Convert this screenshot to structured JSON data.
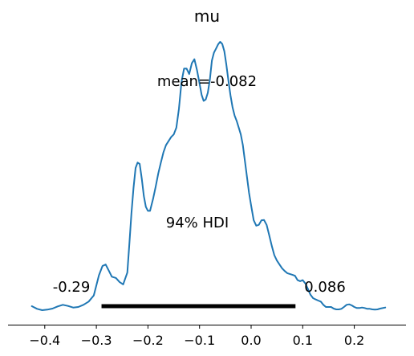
{
  "chart_data": {
    "type": "line",
    "title": "mu",
    "xlabel": "",
    "ylabel": "",
    "grid": false,
    "xlim": [
      -0.435,
      0.3
    ],
    "ylim": [
      0.0,
      1.0
    ],
    "x_ticks": [
      -0.4,
      -0.3,
      -0.2,
      -0.1,
      0.0,
      0.1,
      0.2
    ],
    "x_tick_labels": [
      "−0.4",
      "−0.3",
      "−0.2",
      "−0.1",
      "0.0",
      "0.1",
      "0.2"
    ],
    "series": [
      {
        "color": "#1f77b4",
        "x": [
          -0.425,
          -0.415,
          -0.405,
          -0.395,
          -0.385,
          -0.375,
          -0.365,
          -0.355,
          -0.345,
          -0.335,
          -0.325,
          -0.315,
          -0.305,
          -0.295,
          -0.288,
          -0.282,
          -0.276,
          -0.27,
          -0.262,
          -0.255,
          -0.248,
          -0.24,
          -0.236,
          -0.232,
          -0.228,
          -0.224,
          -0.22,
          -0.216,
          -0.212,
          -0.208,
          -0.204,
          -0.2,
          -0.196,
          -0.19,
          -0.185,
          -0.18,
          -0.175,
          -0.17,
          -0.165,
          -0.16,
          -0.155,
          -0.15,
          -0.145,
          -0.14,
          -0.135,
          -0.13,
          -0.125,
          -0.12,
          -0.115,
          -0.11,
          -0.105,
          -0.1,
          -0.096,
          -0.092,
          -0.088,
          -0.084,
          -0.08,
          -0.076,
          -0.072,
          -0.068,
          -0.064,
          -0.06,
          -0.056,
          -0.052,
          -0.048,
          -0.044,
          -0.04,
          -0.036,
          -0.032,
          -0.028,
          -0.024,
          -0.02,
          -0.016,
          -0.012,
          -0.008,
          -0.004,
          0.0,
          0.005,
          0.01,
          0.015,
          0.02,
          0.025,
          0.03,
          0.035,
          0.04,
          0.045,
          0.05,
          0.055,
          0.06,
          0.065,
          0.07,
          0.075,
          0.08,
          0.085,
          0.09,
          0.095,
          0.1,
          0.105,
          0.11,
          0.115,
          0.12,
          0.125,
          0.13,
          0.135,
          0.14,
          0.145,
          0.15,
          0.155,
          0.16,
          0.165,
          0.17,
          0.175,
          0.18,
          0.185,
          0.19,
          0.195,
          0.2,
          0.205,
          0.21,
          0.215,
          0.22,
          0.225,
          0.23,
          0.235,
          0.24,
          0.245,
          0.25,
          0.26
        ],
        "y": [
          0.015,
          0.005,
          0.0,
          0.002,
          0.006,
          0.014,
          0.02,
          0.016,
          0.01,
          0.012,
          0.02,
          0.032,
          0.055,
          0.13,
          0.165,
          0.17,
          0.148,
          0.125,
          0.12,
          0.105,
          0.096,
          0.14,
          0.25,
          0.36,
          0.455,
          0.53,
          0.55,
          0.545,
          0.49,
          0.425,
          0.385,
          0.37,
          0.37,
          0.415,
          0.46,
          0.51,
          0.55,
          0.588,
          0.615,
          0.63,
          0.645,
          0.655,
          0.68,
          0.75,
          0.85,
          0.9,
          0.9,
          0.88,
          0.92,
          0.935,
          0.895,
          0.845,
          0.802,
          0.78,
          0.785,
          0.81,
          0.86,
          0.93,
          0.96,
          0.975,
          0.99,
          1.0,
          0.992,
          0.965,
          0.915,
          0.855,
          0.8,
          0.755,
          0.725,
          0.705,
          0.68,
          0.655,
          0.615,
          0.555,
          0.495,
          0.437,
          0.39,
          0.335,
          0.315,
          0.318,
          0.335,
          0.336,
          0.318,
          0.28,
          0.24,
          0.205,
          0.185,
          0.17,
          0.156,
          0.146,
          0.138,
          0.135,
          0.132,
          0.128,
          0.112,
          0.108,
          0.112,
          0.1,
          0.08,
          0.058,
          0.045,
          0.04,
          0.036,
          0.032,
          0.02,
          0.012,
          0.012,
          0.012,
          0.006,
          0.003,
          0.003,
          0.005,
          0.012,
          0.02,
          0.022,
          0.018,
          0.012,
          0.008,
          0.008,
          0.01,
          0.008,
          0.005,
          0.005,
          0.003,
          0.002,
          0.003,
          0.006,
          0.01
        ]
      }
    ],
    "hdi": {
      "label": "94% HDI",
      "lower": -0.29,
      "upper": 0.086,
      "lower_label": "-0.29",
      "upper_label": "0.086"
    },
    "point_estimate": {
      "label": "mean=-0.082"
    }
  }
}
